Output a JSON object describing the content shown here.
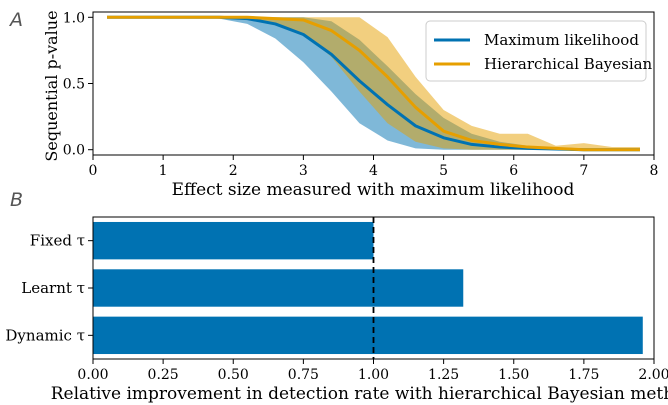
{
  "colors": {
    "ml": "#0072b2",
    "hb": "#e69f00",
    "bar": "#0072b2",
    "ref_line": "#000000",
    "axis": "#000000"
  },
  "chart_data": [
    {
      "panel_label": "A",
      "type": "line",
      "xlabel": "Effect size measured with maximum likelihood",
      "ylabel": "Sequential p-value",
      "xlim": [
        0,
        8
      ],
      "ylim": [
        -0.04,
        1.04
      ],
      "xticks": [
        0,
        1,
        2,
        3,
        4,
        5,
        6,
        7,
        8
      ],
      "yticks": [
        0.0,
        0.5,
        1.0
      ],
      "ytick_labels": [
        "0.0",
        "0.5",
        "1.0"
      ],
      "legend_position": "top-right",
      "grid": false,
      "x": [
        0.2,
        0.6,
        1.0,
        1.4,
        1.8,
        2.2,
        2.6,
        3.0,
        3.4,
        3.8,
        4.2,
        4.6,
        5.0,
        5.4,
        5.8,
        6.2,
        6.6,
        7.0,
        7.4,
        7.8
      ],
      "series": [
        {
          "name": "Maximum likelihood",
          "color": "#0072b2",
          "values": [
            1.0,
            1.0,
            1.0,
            1.0,
            1.0,
            0.99,
            0.95,
            0.87,
            0.72,
            0.52,
            0.34,
            0.18,
            0.09,
            0.04,
            0.02,
            0.01,
            0.005,
            0.0,
            0.0,
            0.0
          ],
          "lower": [
            1.0,
            1.0,
            1.0,
            1.0,
            0.99,
            0.95,
            0.84,
            0.66,
            0.44,
            0.2,
            0.07,
            0.01,
            0.0,
            0.0,
            0.0,
            0.0,
            0.0,
            0.0,
            0.0,
            0.0
          ],
          "upper": [
            1.0,
            1.0,
            1.0,
            1.0,
            1.0,
            1.0,
            1.0,
            1.0,
            0.97,
            0.83,
            0.63,
            0.42,
            0.24,
            0.12,
            0.06,
            0.03,
            0.01,
            0.01,
            0.01,
            0.01
          ]
        },
        {
          "name": "Hierarchical Bayesian",
          "color": "#e69f00",
          "values": [
            1.0,
            1.0,
            1.0,
            1.0,
            1.0,
            1.0,
            0.99,
            0.98,
            0.9,
            0.75,
            0.55,
            0.32,
            0.14,
            0.07,
            0.04,
            0.02,
            0.01,
            0.0,
            0.0,
            0.0
          ],
          "lower": [
            1.0,
            1.0,
            1.0,
            1.0,
            1.0,
            0.99,
            0.96,
            0.88,
            0.7,
            0.44,
            0.2,
            0.06,
            0.01,
            0.0,
            0.0,
            0.0,
            0.0,
            0.0,
            0.0,
            0.0
          ],
          "upper": [
            1.0,
            1.0,
            1.0,
            1.0,
            1.0,
            1.0,
            1.0,
            1.0,
            1.0,
            1.0,
            0.85,
            0.55,
            0.3,
            0.18,
            0.12,
            0.12,
            0.03,
            0.05,
            0.02,
            0.02
          ]
        }
      ]
    },
    {
      "panel_label": "B",
      "type": "bar",
      "orientation": "horizontal",
      "xlabel": "Relative improvement in detection rate with hierarchical Bayesian method",
      "xlim": [
        0.0,
        2.0
      ],
      "xticks": [
        0.0,
        0.25,
        0.5,
        0.75,
        1.0,
        1.25,
        1.5,
        1.75,
        2.0
      ],
      "xtick_labels": [
        "0.00",
        "0.25",
        "0.50",
        "0.75",
        "1.00",
        "1.25",
        "1.50",
        "1.75",
        "2.00"
      ],
      "reference_line_x": 1.0,
      "categories": [
        "Fixed τ",
        "Learnt τ",
        "Dynamic τ"
      ],
      "values": [
        1.0,
        1.32,
        1.96
      ],
      "color": "#0072b2"
    }
  ]
}
